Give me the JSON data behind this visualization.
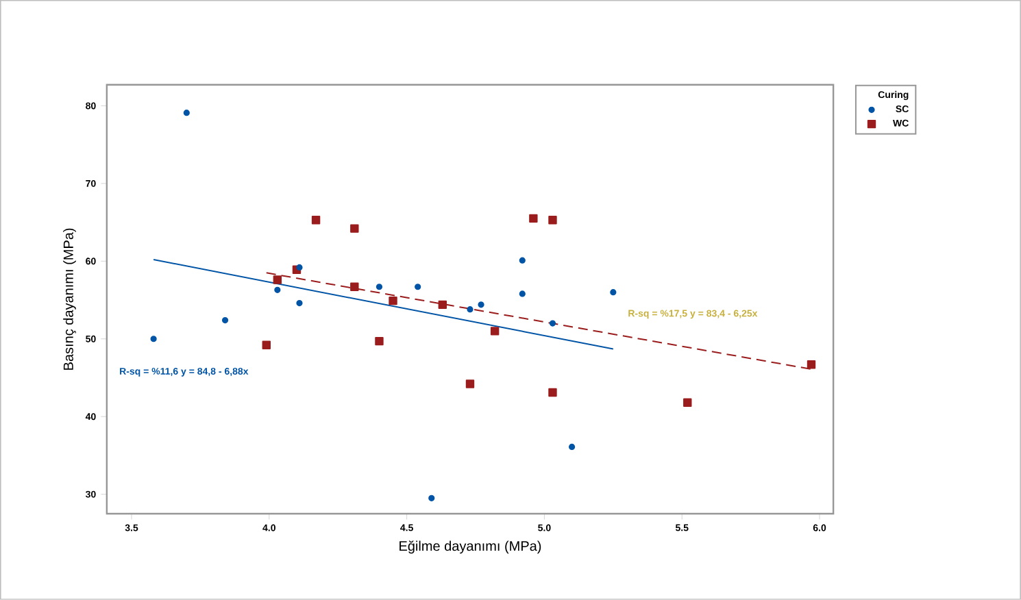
{
  "chart_data": {
    "type": "scatter",
    "xlabel": "Eğilme dayanımı (MPa)",
    "ylabel": "Basınç dayanımı (MPa)",
    "legend_title": "Curing",
    "xlim": [
      3.41,
      6.05
    ],
    "ylim": [
      27.5,
      82.7
    ],
    "xticks": [
      {
        "value": 3.5,
        "label": "3.5"
      },
      {
        "value": 4.0,
        "label": "4.0"
      },
      {
        "value": 4.5,
        "label": "4.5"
      },
      {
        "value": 5.0,
        "label": "5.0"
      },
      {
        "value": 5.5,
        "label": "5.5"
      },
      {
        "value": 6.0,
        "label": "6.0"
      }
    ],
    "yticks": [
      30,
      40,
      50,
      60,
      70,
      80
    ],
    "grid": false,
    "legend": "top right",
    "series": [
      {
        "name": "SC",
        "color": "#0054a6",
        "marker": "circle",
        "x": [
          3.58,
          3.7,
          3.84,
          4.03,
          4.11,
          4.11,
          4.4,
          4.54,
          4.59,
          4.73,
          4.77,
          4.92,
          4.92,
          5.03,
          5.1,
          5.25
        ],
        "values": [
          50.0,
          79.1,
          52.4,
          56.3,
          59.2,
          54.6,
          56.7,
          56.7,
          29.5,
          53.8,
          54.4,
          60.1,
          55.8,
          52.0,
          36.1,
          56.0
        ]
      },
      {
        "name": "WC",
        "color": "#9b1c1c",
        "marker": "square",
        "x": [
          3.99,
          4.03,
          4.1,
          4.17,
          4.31,
          4.31,
          4.4,
          4.45,
          4.63,
          4.73,
          4.82,
          4.96,
          5.03,
          5.03,
          5.52,
          5.97
        ],
        "values": [
          49.2,
          57.6,
          58.9,
          65.3,
          64.2,
          56.7,
          49.7,
          54.9,
          54.4,
          44.2,
          51.0,
          65.5,
          65.3,
          43.1,
          41.8,
          46.7
        ]
      },
      {
        "type": "line",
        "color": "#0054a6",
        "line_style": "solid",
        "marker": "none",
        "x": [
          3.58,
          5.25
        ],
        "values": [
          60.2,
          48.7
        ]
      },
      {
        "type": "line",
        "color": "#9b1c1c",
        "line_style": "dashed",
        "marker": "none",
        "x": [
          3.99,
          5.97
        ],
        "values": [
          58.5,
          46.1
        ]
      }
    ],
    "annotations": [
      "R-sq = %11,6  y = 84,8 - 6,88x",
      "R-sq = %17,5  y = 83,4 - 6,25x"
    ]
  }
}
